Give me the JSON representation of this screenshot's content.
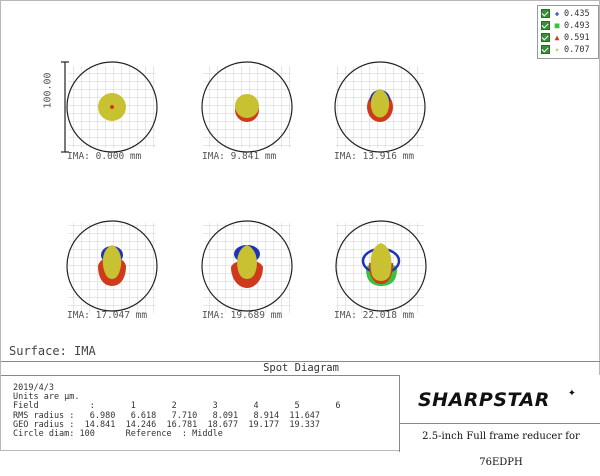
{
  "legend": [
    {
      "symbol": "✚",
      "color": "#1f33b8",
      "value": "0.435"
    },
    {
      "symbol": "■",
      "color": "#39c23d",
      "value": "0.493"
    },
    {
      "symbol": "▲",
      "color": "#d03a1c",
      "value": "0.591"
    },
    {
      "symbol": "✦",
      "color": "#c8c232",
      "value": "0.707"
    }
  ],
  "scale_label": "100.00",
  "fields": [
    {
      "label": "IMA: 0.000 mm"
    },
    {
      "label": "IMA: 9.841 mm"
    },
    {
      "label": "IMA: 13.916 mm"
    },
    {
      "label": "IMA: 17.047 mm"
    },
    {
      "label": "IMA: 19.689 mm"
    },
    {
      "label": "IMA: 22.018 mm"
    }
  ],
  "surface": "Surface: IMA",
  "title": "Spot Diagram",
  "info_lines": [
    "2019/4/3",
    "Units are µm.",
    "Field          :       1       2       3       4       5       6",
    "RMS radius :   6.980   6.618   7.710   8.091   8.914  11.647",
    "GEO radius :  14.841  14.246  16.781  18.677  19.177  19.337",
    "Circle diam: 100      Reference  : Middle"
  ],
  "logo_text": "SHARPSTAR",
  "logo_subtitle": "2.5-inch Full frame reducer for 76EDPH"
}
